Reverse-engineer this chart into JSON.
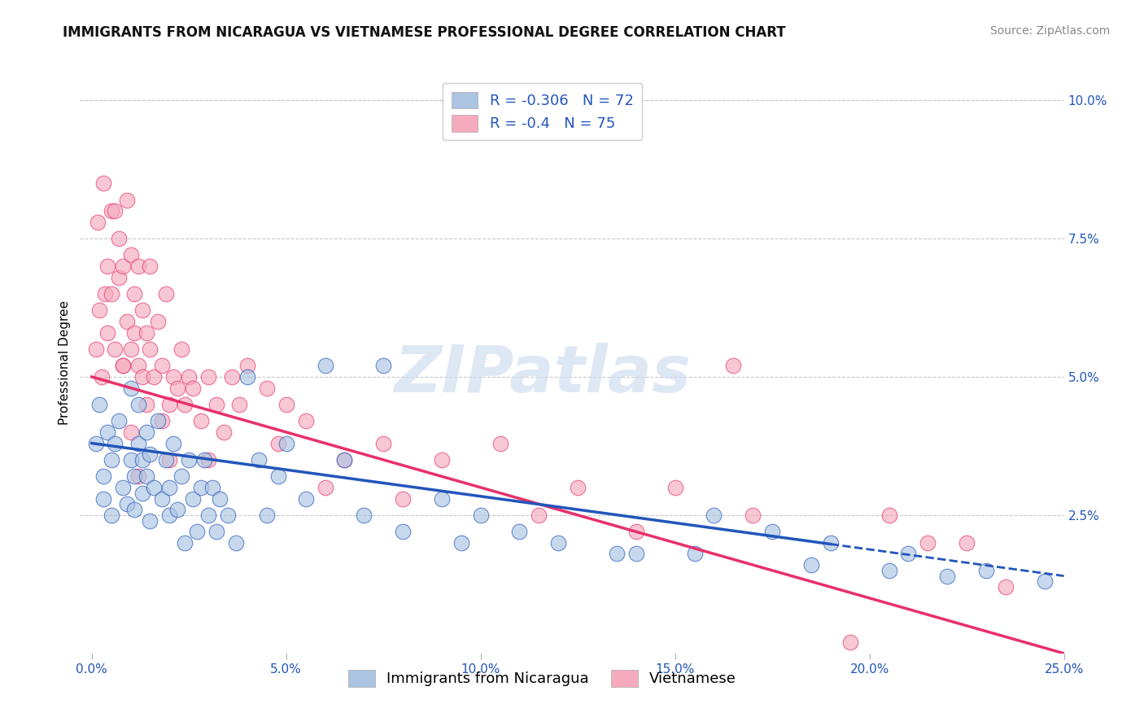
{
  "title": "IMMIGRANTS FROM NICARAGUA VS VIETNAMESE PROFESSIONAL DEGREE CORRELATION CHART",
  "source": "Source: ZipAtlas.com",
  "ylabel": "Professional Degree",
  "x_tick_labels": [
    "0.0%",
    "5.0%",
    "10.0%",
    "15.0%",
    "20.0%",
    "25.0%"
  ],
  "x_tick_vals": [
    0,
    5,
    10,
    15,
    20,
    25
  ],
  "y_tick_labels": [
    "2.5%",
    "5.0%",
    "7.5%",
    "10.0%"
  ],
  "y_tick_vals": [
    2.5,
    5.0,
    7.5,
    10.0
  ],
  "xlim": [
    -0.3,
    25
  ],
  "ylim": [
    0,
    10.5
  ],
  "blue_R": -0.306,
  "blue_N": 72,
  "pink_R": -0.4,
  "pink_N": 75,
  "blue_label": "Immigrants from Nicaragua",
  "pink_label": "Vietnamese",
  "blue_color": "#aac4e2",
  "pink_color": "#f5aabe",
  "blue_line_color": "#2255bb",
  "pink_line_color": "#e8306a",
  "watermark_text": "ZIPatlas",
  "blue_scatter_x": [
    0.1,
    0.2,
    0.3,
    0.3,
    0.4,
    0.5,
    0.5,
    0.6,
    0.7,
    0.8,
    0.9,
    1.0,
    1.0,
    1.1,
    1.1,
    1.2,
    1.2,
    1.3,
    1.3,
    1.4,
    1.4,
    1.5,
    1.5,
    1.6,
    1.7,
    1.8,
    1.9,
    2.0,
    2.0,
    2.1,
    2.2,
    2.3,
    2.4,
    2.5,
    2.6,
    2.7,
    2.8,
    2.9,
    3.0,
    3.1,
    3.2,
    3.3,
    3.5,
    3.7,
    4.0,
    4.3,
    4.5,
    5.0,
    5.5,
    6.0,
    7.0,
    8.0,
    9.5,
    10.0,
    12.0,
    14.0,
    16.0,
    17.5,
    19.0,
    21.0,
    6.5,
    7.5,
    9.0,
    11.0,
    13.5,
    15.5,
    18.5,
    20.5,
    22.0,
    23.0,
    24.5,
    4.8
  ],
  "blue_scatter_y": [
    3.8,
    4.5,
    3.2,
    2.8,
    4.0,
    3.5,
    2.5,
    3.8,
    4.2,
    3.0,
    2.7,
    3.5,
    4.8,
    3.2,
    2.6,
    4.5,
    3.8,
    3.5,
    2.9,
    3.2,
    4.0,
    3.6,
    2.4,
    3.0,
    4.2,
    2.8,
    3.5,
    3.0,
    2.5,
    3.8,
    2.6,
    3.2,
    2.0,
    3.5,
    2.8,
    2.2,
    3.0,
    3.5,
    2.5,
    3.0,
    2.2,
    2.8,
    2.5,
    2.0,
    5.0,
    3.5,
    2.5,
    3.8,
    2.8,
    5.2,
    2.5,
    2.2,
    2.0,
    2.5,
    2.0,
    1.8,
    2.5,
    2.2,
    2.0,
    1.8,
    3.5,
    5.2,
    2.8,
    2.2,
    1.8,
    1.8,
    1.6,
    1.5,
    1.4,
    1.5,
    1.3,
    3.2
  ],
  "pink_scatter_x": [
    0.1,
    0.15,
    0.2,
    0.25,
    0.3,
    0.35,
    0.4,
    0.4,
    0.5,
    0.5,
    0.6,
    0.6,
    0.7,
    0.7,
    0.8,
    0.8,
    0.9,
    0.9,
    1.0,
    1.0,
    1.1,
    1.1,
    1.2,
    1.2,
    1.3,
    1.3,
    1.4,
    1.4,
    1.5,
    1.5,
    1.6,
    1.7,
    1.8,
    1.9,
    2.0,
    2.1,
    2.2,
    2.3,
    2.4,
    2.5,
    2.6,
    2.8,
    3.0,
    3.2,
    3.4,
    3.6,
    4.0,
    4.5,
    5.0,
    5.5,
    6.5,
    7.5,
    9.0,
    10.5,
    12.5,
    15.0,
    17.0,
    20.5,
    22.5,
    3.8,
    3.0,
    2.0,
    1.8,
    4.8,
    6.0,
    8.0,
    11.5,
    14.0,
    16.5,
    19.5,
    21.5,
    23.5,
    0.8,
    1.0,
    1.2
  ],
  "pink_scatter_y": [
    5.5,
    7.8,
    6.2,
    5.0,
    8.5,
    6.5,
    7.0,
    5.8,
    8.0,
    6.5,
    5.5,
    8.0,
    6.8,
    7.5,
    5.2,
    7.0,
    6.0,
    8.2,
    5.5,
    7.2,
    5.8,
    6.5,
    5.2,
    7.0,
    5.0,
    6.2,
    5.8,
    4.5,
    5.5,
    7.0,
    5.0,
    6.0,
    5.2,
    6.5,
    4.5,
    5.0,
    4.8,
    5.5,
    4.5,
    5.0,
    4.8,
    4.2,
    5.0,
    4.5,
    4.0,
    5.0,
    5.2,
    4.8,
    4.5,
    4.2,
    3.5,
    3.8,
    3.5,
    3.8,
    3.0,
    3.0,
    2.5,
    2.5,
    2.0,
    4.5,
    3.5,
    3.5,
    4.2,
    3.8,
    3.0,
    2.8,
    2.5,
    2.2,
    5.2,
    0.2,
    2.0,
    1.2,
    5.2,
    4.0,
    3.2
  ],
  "blue_trend_x0": 0,
  "blue_trend_y0": 3.8,
  "blue_trend_x1": 25,
  "blue_trend_y1": 1.4,
  "blue_solid_end_x": 19,
  "pink_trend_x0": 0,
  "pink_trend_y0": 5.0,
  "pink_trend_x1": 25,
  "pink_trend_y1": 0.0,
  "background_color": "#ffffff",
  "grid_color": "#c8c8c8",
  "title_fontsize": 12,
  "axis_label_fontsize": 11,
  "tick_fontsize": 11,
  "legend_fontsize": 13,
  "source_fontsize": 10
}
